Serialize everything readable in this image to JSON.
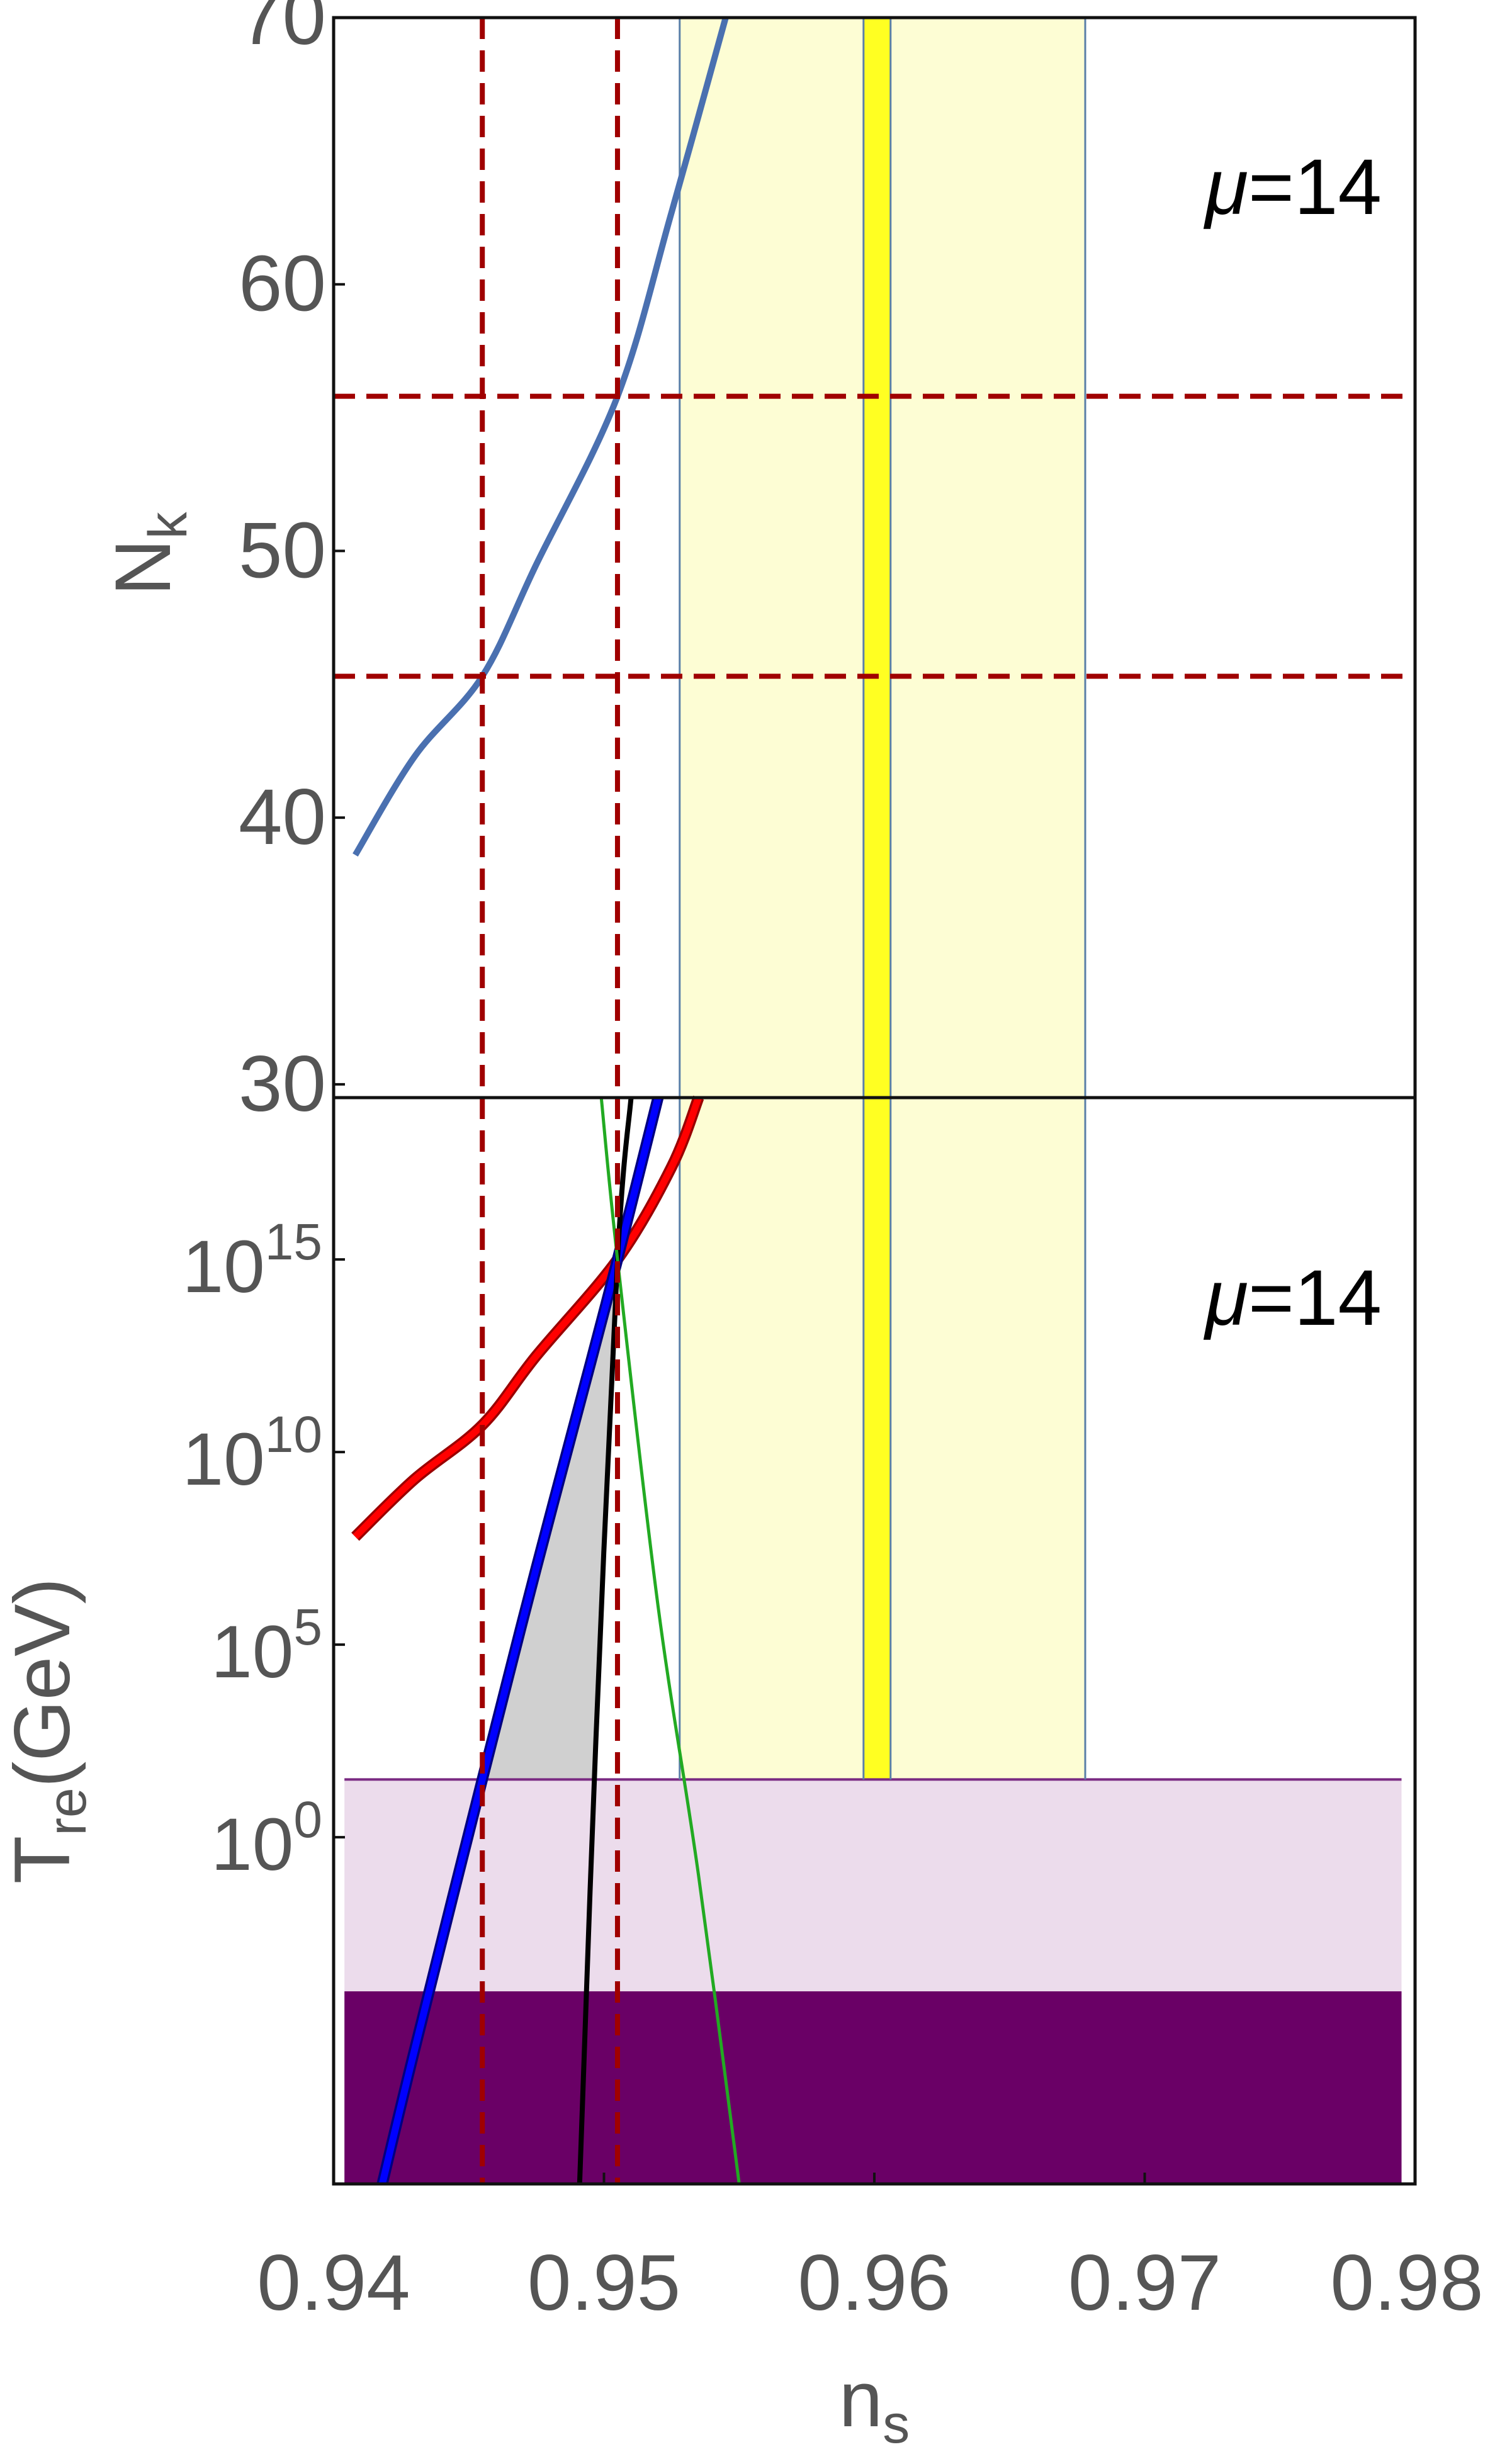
{
  "chart_data": [
    {
      "type": "line",
      "panel": "top",
      "xlabel": "",
      "ylabel": "N",
      "ylabel_sub": "k",
      "xlim": [
        0.94,
        0.98
      ],
      "ylim": [
        29.5,
        70
      ],
      "yticks": [
        30,
        40,
        50,
        60,
        70
      ],
      "ytick_labels": [
        "30",
        "40",
        "50",
        "60",
        "70"
      ],
      "annotation": {
        "prefix": "μ",
        "text": "=14"
      },
      "series": [
        {
          "color": "#4a70b0",
          "x": [
            0.9408,
            0.943,
            0.9455,
            0.9475,
            0.9505,
            0.9525,
            0.9545
          ],
          "y": [
            38.6,
            42.3,
            45.3,
            49.5,
            55.8,
            62.7,
            70
          ]
        }
      ],
      "bands": [
        {
          "x": [
            0.9528,
            0.9678
          ],
          "color": "#fdfdd4"
        },
        {
          "x": [
            0.9596,
            0.9606
          ],
          "color": "#ffff22"
        }
      ],
      "vlines": [
        0.9528,
        0.9596,
        0.9606,
        0.9678
      ],
      "dashed_vlines": [
        0.9455,
        0.9505
      ],
      "dashed_hlines": [
        45.3,
        55.8
      ]
    },
    {
      "type": "line",
      "panel": "bottom",
      "xlabel": "n",
      "xlabel_sub": "s",
      "ylabel_main": "T",
      "ylabel_sub": "re",
      "ylabel_unit": "(GeV)",
      "xlim": [
        0.94,
        0.98
      ],
      "ylim_log10": [
        -9,
        19.2
      ],
      "xticks": [
        0.94,
        0.95,
        0.96,
        0.97,
        0.98
      ],
      "xtick_labels": [
        "0.94",
        "0.95",
        "0.96",
        "0.97",
        "0.98"
      ],
      "yticks": [
        {
          "base": "10",
          "exp": "15",
          "log10": 15
        },
        {
          "base": "10",
          "exp": "10",
          "log10": 10
        },
        {
          "base": "10",
          "exp": "5",
          "log10": 5
        },
        {
          "base": "10",
          "exp": "0",
          "log10": 0
        }
      ],
      "annotation": {
        "prefix": "μ",
        "text": "=14"
      },
      "series": [
        {
          "color": "#ff0000",
          "outline": "#990000",
          "x": [
            0.9408,
            0.943,
            0.9455,
            0.9475,
            0.9505,
            0.9525,
            0.9535
          ],
          "y_log10": [
            7.8,
            9.3,
            10.7,
            12.5,
            15.0,
            17.4,
            19.2
          ]
        },
        {
          "color": "#0000ff",
          "outline": "#000080",
          "x": [
            0.9418,
            0.943,
            0.9455,
            0.9475,
            0.9495,
            0.9505,
            0.952
          ],
          "y_log10": [
            -9,
            -5.5,
            1.5,
            7.0,
            12.3,
            15.0,
            19.2
          ]
        },
        {
          "color": "#000000",
          "x": [
            0.9491,
            0.9497,
            0.9505,
            0.951
          ],
          "y_log10": [
            -9,
            2.5,
            15.0,
            19.2
          ]
        },
        {
          "color": "#22aa22",
          "x": [
            0.9499,
            0.9505,
            0.952,
            0.9535,
            0.955
          ],
          "y_log10": [
            19.2,
            15.0,
            6.0,
            -1.0,
            -9
          ]
        }
      ],
      "shaded_regions": [
        {
          "color": "#d0d0d0",
          "x": [
            0.9455,
            0.9475,
            0.9495,
            0.9505,
            0.9497
          ],
          "y_log10": [
            1.5,
            7.0,
            12.3,
            15.0,
            1.5
          ]
        }
      ],
      "bands": [
        {
          "x": [
            0.9528,
            0.9678
          ],
          "y_log10": [
            1.5,
            19.2
          ],
          "color": "#fdfdd4"
        },
        {
          "x": [
            0.9596,
            0.9606
          ],
          "y_log10": [
            1.5,
            19.2
          ],
          "color": "#ffff22"
        }
      ],
      "hbands": [
        {
          "y_log10": [
            -4,
            1.5
          ],
          "color": "#ecdcec"
        },
        {
          "y_log10": [
            -9,
            -4
          ],
          "color": "#6a0066"
        }
      ],
      "hline": {
        "y_log10": 1.5,
        "color": "#7a2a82"
      },
      "vlines": [
        0.9528,
        0.9596,
        0.9606,
        0.9678
      ],
      "dashed_vlines": [
        0.9455,
        0.9505
      ]
    }
  ]
}
